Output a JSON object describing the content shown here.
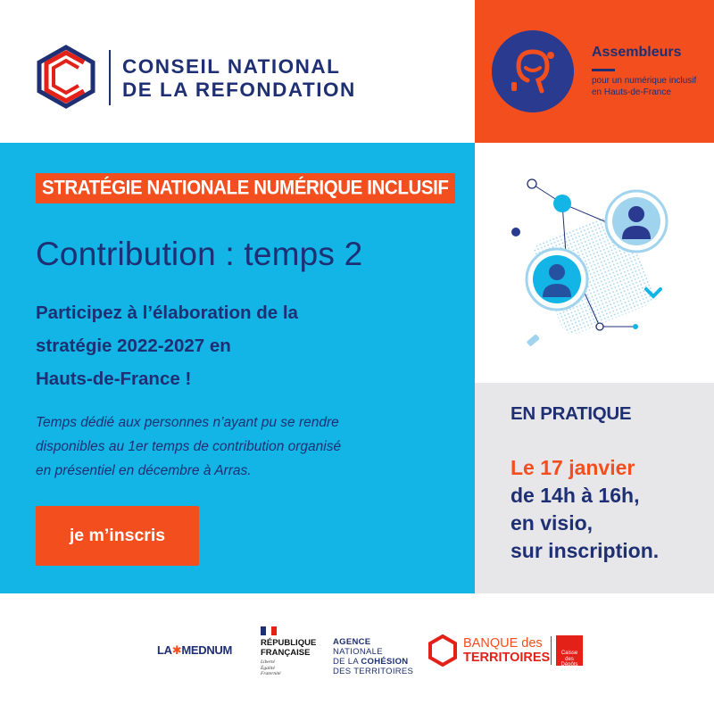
{
  "header": {
    "org_line1": "CONSEIL NATIONAL",
    "org_line2": "DE LA REFONDATION",
    "partner_name": "Assembleurs",
    "partner_tag_line1": "pour un numérique inclusif",
    "partner_tag_line2": "en Hauts-de-France"
  },
  "main": {
    "banner": "STRATÉGIE NATIONALE NUMÉRIQUE INCLUSIF",
    "headline": "Contribution : temps 2",
    "lead_line1": "Participez à l’élaboration de la",
    "lead_line2": "stratégie 2022-2027 en",
    "lead_line3": "Hauts-de-France !",
    "note_line1": "Temps dédié aux personnes n’ayant pu se rendre",
    "note_line2": "disponibles au 1er temps de contribution organisé",
    "note_line3": "en présentiel en décembre à Arras.",
    "cta_label": "je m’inscris"
  },
  "practical": {
    "title": "EN PRATIQUE",
    "date": "Le 17 janvier",
    "time": "de 14h à 16h,",
    "mode": "en visio,",
    "access": "sur inscription."
  },
  "footer": {
    "mednum_prefix": "LA",
    "mednum_name": "MEDNUM",
    "rf_line1": "RÉPUBLIQUE",
    "rf_line2": "FRANÇAISE",
    "rf_motto1": "Liberté",
    "rf_motto2": "Égalité",
    "rf_motto3": "Fraternité",
    "anct_line1": "AGENCE",
    "anct_line2": "NATIONALE",
    "anct_line3a": "DE LA ",
    "anct_line3b": "COHÉSION",
    "anct_line4": "DES TERRITOIRES",
    "bdt_line1a": "BANQUE",
    "bdt_line1b": " des",
    "bdt_line2": "TERRITOIRES",
    "cdc_line1": "Caisse",
    "cdc_line2": "des Dépôts"
  },
  "colors": {
    "navy": "#1e2f73",
    "orange": "#f24e1e",
    "sky_blue": "#12b5e5",
    "light_grey": "#e7e7ea",
    "red": "#e32118"
  }
}
